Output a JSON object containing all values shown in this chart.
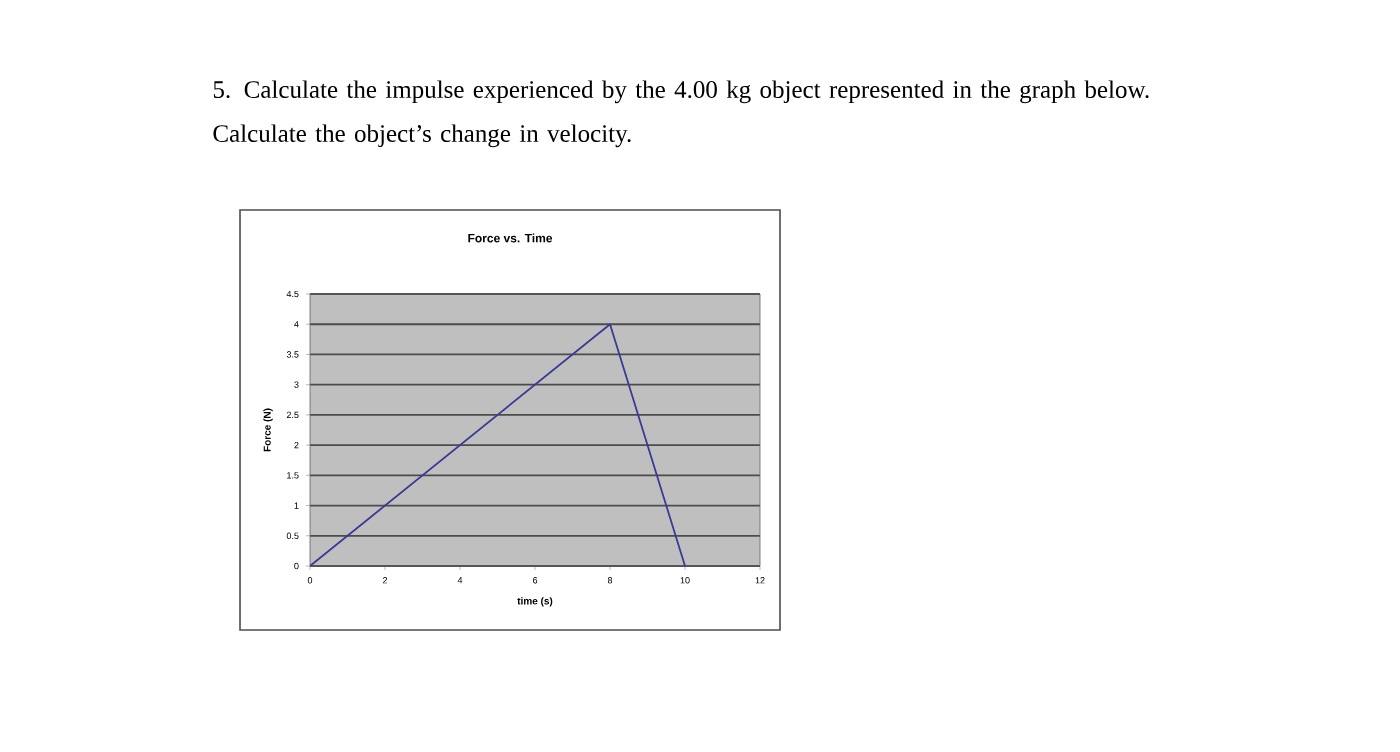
{
  "chart_data": {
    "type": "line",
    "title": "Force vs. Time",
    "xlabel": "time (s)",
    "ylabel": "Force (N)",
    "annotations": [
      "5. Calculate the impulse experienced by the 4.00 kg object represented in the graph below. Calculate the object’s change in velocity."
    ],
    "x": [
      0,
      8,
      10
    ],
    "series": [
      {
        "color": "#3a3a96",
        "values": [
          0,
          4,
          0
        ]
      }
    ],
    "xlim": [
      0,
      12
    ],
    "ylim": [
      0,
      4.5
    ],
    "xticks": [
      0,
      2,
      4,
      6,
      8,
      10,
      12
    ],
    "yticks": [
      0,
      0.5,
      1,
      1.5,
      2,
      2.5,
      3,
      3.5,
      4,
      4.5
    ],
    "grid": "y",
    "marker": "none",
    "line_style": "solid"
  }
}
